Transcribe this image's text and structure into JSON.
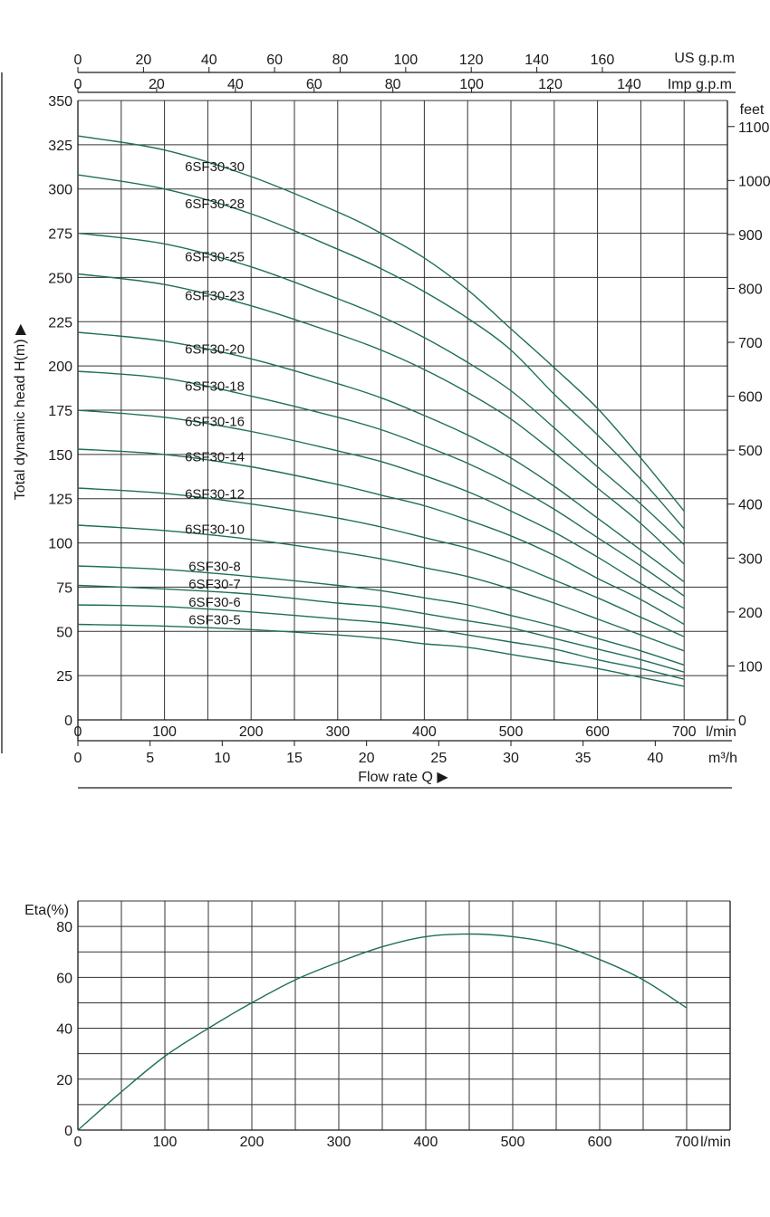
{
  "colors": {
    "curve": "#1f6e5c",
    "grid": "#333333",
    "axis": "#1a1a1a"
  },
  "chart_data": [
    {
      "type": "line",
      "title": "",
      "ylabel": "Total dynamic head H(m) ▶",
      "xlabel": "Flow rate Q ▶",
      "x_unit": "l/min",
      "xlim": [
        0,
        750
      ],
      "ylim": [
        0,
        350
      ],
      "x_ticks": [
        0,
        100,
        200,
        300,
        400,
        500,
        600,
        700
      ],
      "y_ticks": [
        0,
        25,
        50,
        75,
        100,
        125,
        150,
        175,
        200,
        225,
        250,
        275,
        300,
        325,
        350
      ],
      "grid": true,
      "secondary_axes": {
        "top_1": {
          "label": "US g.p.m",
          "ticks": [
            "0",
            "20",
            "40",
            "60",
            "80",
            "100",
            "120",
            "140",
            "160"
          ]
        },
        "top_2": {
          "label": "Imp g.p.m",
          "ticks": [
            "0",
            "20",
            "40",
            "60",
            "80",
            "100",
            "120",
            "140"
          ]
        },
        "right": {
          "label": "feet",
          "ticks": [
            "0",
            "100",
            "200",
            "300",
            "400",
            "500",
            "600",
            "700",
            "800",
            "900",
            "1000",
            "1100"
          ]
        },
        "bottom_2": {
          "label": "m³/h",
          "ticks": [
            "0",
            "5",
            "10",
            "15",
            "20",
            "25",
            "30",
            "35",
            "40"
          ]
        }
      },
      "x": [
        0,
        100,
        200,
        300,
        350,
        400,
        450,
        500,
        550,
        600,
        650,
        700
      ],
      "series": [
        {
          "name": "6SF30-30",
          "values": [
            330,
            322,
            307,
            287,
            275,
            261,
            243,
            221,
            199,
            176,
            148,
            118
          ]
        },
        {
          "name": "6SF30-28",
          "values": [
            308,
            300,
            286,
            266,
            255,
            242,
            227,
            209,
            184,
            161,
            136,
            108
          ]
        },
        {
          "name": "6SF30-25",
          "values": [
            275,
            269,
            256,
            238,
            228,
            216,
            202,
            186,
            165,
            143,
            122,
            99
          ]
        },
        {
          "name": "6SF30-23",
          "values": [
            252,
            246,
            234,
            218,
            209,
            198,
            185,
            170,
            151,
            131,
            111,
            88
          ]
        },
        {
          "name": "6SF30-20",
          "values": [
            219,
            214,
            204,
            190,
            182,
            172,
            161,
            148,
            132,
            114,
            96,
            78
          ]
        },
        {
          "name": "6SF30-18",
          "values": [
            197,
            193,
            183,
            171,
            164,
            155,
            145,
            133,
            119,
            103,
            87,
            70
          ]
        },
        {
          "name": "6SF30-16",
          "values": [
            175,
            171,
            163,
            152,
            146,
            138,
            129,
            118,
            106,
            92,
            77,
            63
          ]
        },
        {
          "name": "6SF30-14",
          "values": [
            153,
            150,
            143,
            133,
            127,
            121,
            113,
            104,
            93,
            80,
            68,
            54
          ]
        },
        {
          "name": "6SF30-12",
          "values": [
            131,
            128,
            122,
            114,
            109,
            103,
            97,
            89,
            79,
            69,
            58,
            47
          ]
        },
        {
          "name": "6SF30-10",
          "values": [
            110,
            107,
            102,
            95,
            91,
            86,
            81,
            74,
            66,
            57,
            48,
            39
          ]
        },
        {
          "name": "6SF30-8",
          "values": [
            87,
            85,
            81,
            76,
            73,
            69,
            65,
            59,
            53,
            46,
            39,
            31
          ]
        },
        {
          "name": "6SF30-7",
          "values": [
            76,
            74,
            71,
            66,
            64,
            60,
            56,
            52,
            46,
            40,
            34,
            27
          ]
        },
        {
          "name": "6SF30-6",
          "values": [
            65,
            64,
            61,
            57,
            55,
            52,
            48,
            44,
            40,
            34,
            29,
            23
          ]
        },
        {
          "name": "6SF30-5",
          "values": [
            54,
            53,
            51,
            48,
            46,
            43,
            41,
            37,
            33,
            29,
            24,
            19
          ]
        }
      ]
    },
    {
      "type": "line",
      "title": "",
      "ylabel": "Eta(%)",
      "x_unit": "l/min",
      "xlim": [
        0,
        750
      ],
      "ylim": [
        0,
        90
      ],
      "x_ticks": [
        0,
        100,
        200,
        300,
        400,
        500,
        600,
        700
      ],
      "y_ticks": [
        0,
        20,
        40,
        60,
        80
      ],
      "grid": true,
      "x": [
        0,
        50,
        100,
        150,
        200,
        250,
        300,
        350,
        400,
        450,
        500,
        550,
        600,
        650,
        700
      ],
      "series": [
        {
          "values": [
            0,
            15,
            29,
            40,
            50,
            59,
            66,
            72,
            76,
            77,
            76,
            73,
            67,
            59,
            48
          ]
        }
      ]
    }
  ]
}
